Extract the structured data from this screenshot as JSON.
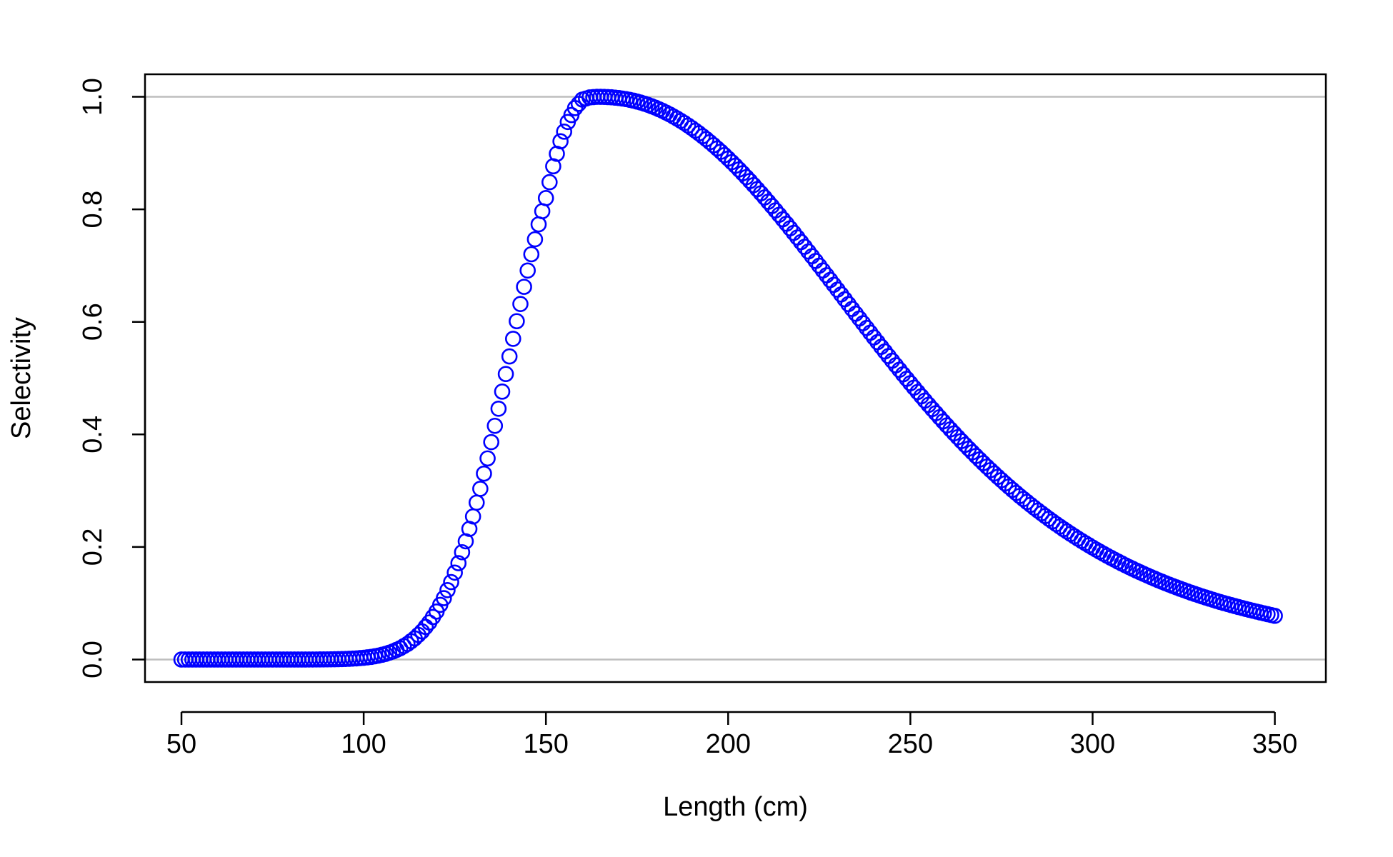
{
  "chart_data": {
    "type": "scatter",
    "title": "",
    "xlabel": "Length (cm)",
    "ylabel": "Selectivity",
    "xlim": [
      40,
      364
    ],
    "ylim": [
      -0.04,
      1.04
    ],
    "x_ticks": [
      50,
      100,
      150,
      200,
      250,
      300,
      350
    ],
    "x_tick_labels": [
      "50",
      "100",
      "150",
      "200",
      "250",
      "300",
      "350"
    ],
    "y_ticks": [
      0.0,
      0.2,
      0.4,
      0.6,
      0.8,
      1.0
    ],
    "y_tick_labels": [
      "0.0",
      "0.2",
      "0.4",
      "0.6",
      "0.8",
      "1.0"
    ],
    "grid": false,
    "reference_lines": [
      {
        "axis": "y",
        "value": 0.0,
        "color": "#bebebe"
      },
      {
        "axis": "y",
        "value": 1.0,
        "color": "#bebebe"
      }
    ],
    "marker": "open-circle",
    "series_color": "#0000ff",
    "x_step": 1,
    "series": [
      {
        "x": [
          50,
          52,
          54,
          56,
          58,
          60,
          62,
          64,
          66,
          68,
          70,
          72,
          74,
          76,
          78,
          80,
          82,
          84,
          86,
          88,
          90,
          92,
          94,
          96,
          98,
          100,
          102,
          104,
          106,
          108,
          110,
          112,
          114,
          116,
          118,
          120,
          122,
          124,
          126,
          128,
          130,
          132,
          134,
          136,
          138,
          140,
          142,
          144,
          146,
          148,
          150,
          152,
          154,
          156,
          158,
          160,
          162,
          164,
          166,
          168,
          170,
          172,
          174,
          176,
          178,
          180,
          182,
          184,
          186,
          188,
          190,
          192,
          194,
          196,
          198,
          200,
          202,
          204,
          206,
          208,
          210,
          212,
          214,
          216,
          218,
          220,
          222,
          224,
          226,
          228,
          230,
          232,
          234,
          236,
          238,
          240,
          242,
          244,
          246,
          248,
          250,
          252,
          254,
          256,
          258,
          260,
          262,
          264,
          266,
          268,
          270,
          272,
          274,
          276,
          278,
          280,
          282,
          284,
          286,
          288,
          290,
          292,
          294,
          296,
          298,
          300,
          302,
          304,
          306,
          308,
          310,
          312,
          314,
          316,
          318,
          320,
          322,
          324,
          326,
          328,
          330,
          332,
          334,
          336,
          338,
          340,
          342,
          344,
          346,
          348,
          350
        ],
        "values": [
          0.0,
          0.0,
          0.0,
          0.0,
          0.0,
          0.0,
          0.0,
          0.0,
          0.0,
          0.0,
          0.0,
          0.0,
          0.0,
          0.0,
          0.0,
          0.0,
          0.0,
          0.0,
          0.0001,
          0.0002,
          0.0003,
          0.0005,
          0.0008,
          0.0013,
          0.002,
          0.0031,
          0.0046,
          0.0069,
          0.01,
          0.0143,
          0.02,
          0.0276,
          0.0375,
          0.05,
          0.0658,
          0.0853,
          0.1091,
          0.1376,
          0.1712,
          0.2101,
          0.2542,
          0.3034,
          0.3574,
          0.4153,
          0.4761,
          0.5386,
          0.6012,
          0.6623,
          0.7202,
          0.7733,
          0.82,
          0.8765,
          0.9209,
          0.9552,
          0.9799,
          0.9951,
          0.9989,
          1.0,
          0.9998,
          0.9991,
          0.9978,
          0.9959,
          0.9932,
          0.9898,
          0.9857,
          0.9808,
          0.9751,
          0.9686,
          0.9613,
          0.9533,
          0.9445,
          0.935,
          0.9248,
          0.9139,
          0.9024,
          0.8902,
          0.8775,
          0.8641,
          0.8503,
          0.8359,
          0.8211,
          0.8059,
          0.7903,
          0.7744,
          0.7582,
          0.7418,
          0.7251,
          0.7083,
          0.6914,
          0.6744,
          0.6573,
          0.6402,
          0.6231,
          0.6061,
          0.5892,
          0.5724,
          0.5557,
          0.5392,
          0.5229,
          0.5068,
          0.491,
          0.4754,
          0.4601,
          0.4451,
          0.4304,
          0.416,
          0.4019,
          0.3882,
          0.3748,
          0.3617,
          0.349,
          0.3366,
          0.3246,
          0.3129,
          0.3016,
          0.2906,
          0.28,
          0.2697,
          0.2598,
          0.2501,
          0.2408,
          0.2318,
          0.2232,
          0.2148,
          0.2068,
          0.199,
          0.1915,
          0.1843,
          0.1774,
          0.1707,
          0.1643,
          0.1581,
          0.1522,
          0.1465,
          0.141,
          0.1357,
          0.1307,
          0.1258,
          0.1211,
          0.1166,
          0.1123,
          0.1082,
          0.1042,
          0.1004,
          0.0968,
          0.0933,
          0.0899,
          0.0867,
          0.0836,
          0.0806,
          0.0777
        ]
      }
    ]
  }
}
